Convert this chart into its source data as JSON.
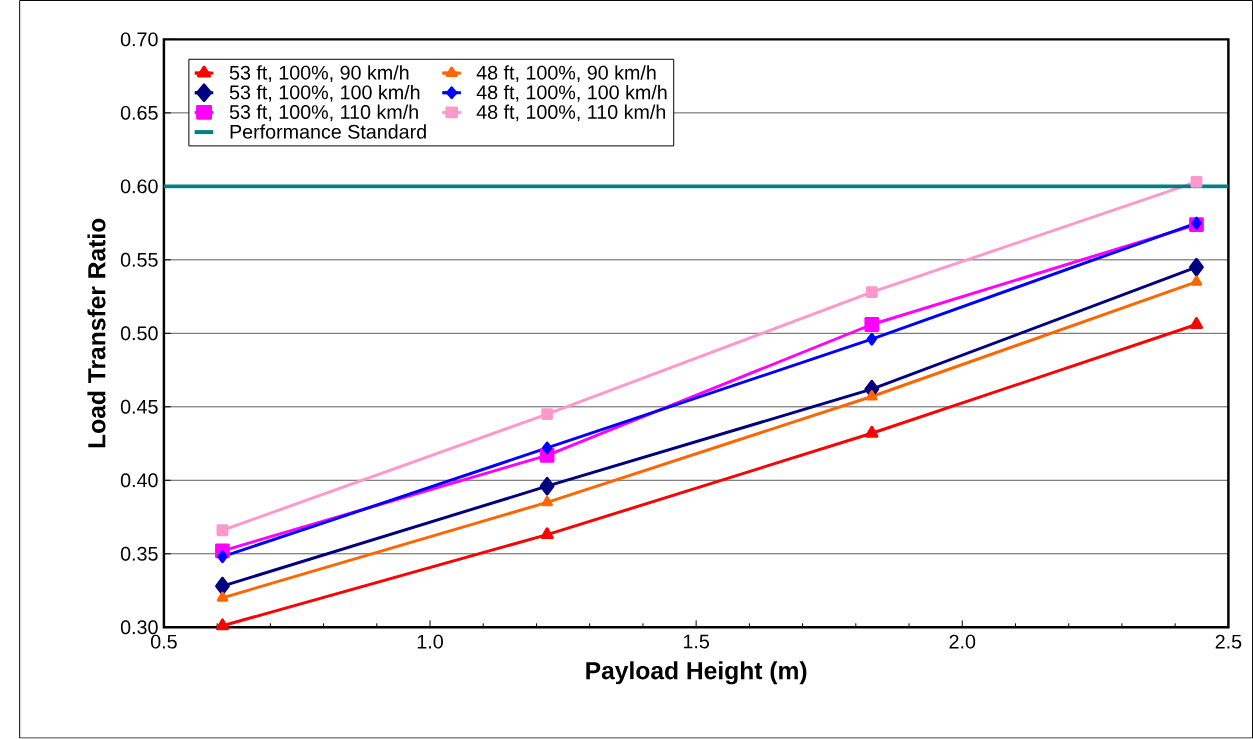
{
  "chart_data": {
    "type": "line",
    "xlabel": "Payload Height (m)",
    "ylabel": "Load Transfer Ratio",
    "x": [
      0.61,
      1.22,
      1.83,
      2.44
    ],
    "series": [
      {
        "name": "53 ft, 100%, 90 km/h",
        "color": "#ff0000",
        "marker": "triangle",
        "values": [
          0.301,
          0.363,
          0.432,
          0.506
        ]
      },
      {
        "name": "48 ft, 100%, 90 km/h",
        "color": "#ff6600",
        "marker": "triangle",
        "values": [
          0.32,
          0.385,
          0.457,
          0.535
        ]
      },
      {
        "name": "53 ft, 100%, 100 km/h",
        "color": "#000080",
        "marker": "diamond",
        "values": [
          0.328,
          0.396,
          0.462,
          0.545
        ]
      },
      {
        "name": "48 ft, 100%, 100 km/h",
        "color": "#0000ff",
        "marker": "diamond",
        "values": [
          0.348,
          0.422,
          0.496,
          0.575
        ]
      },
      {
        "name": "53 ft, 100%, 110 km/h",
        "color": "#ff00ff",
        "marker": "square",
        "values": [
          0.352,
          0.417,
          0.506,
          0.574
        ]
      },
      {
        "name": "48 ft, 100%, 110 km/h",
        "color": "#ff99cc",
        "marker": "square",
        "values": [
          0.366,
          0.445,
          0.528,
          0.603
        ]
      }
    ],
    "ref_lines": [
      {
        "axis": "y",
        "value": 0.6,
        "label": "Performance Standard",
        "color": "#008080"
      }
    ],
    "xlim": [
      0.5,
      2.5
    ],
    "xticks": [
      {
        "value": 0.5,
        "label": "0.5"
      },
      {
        "value": 1.0,
        "label": "1.0"
      },
      {
        "value": 1.5,
        "label": "1.5"
      },
      {
        "value": 2.0,
        "label": "2.0"
      },
      {
        "value": 2.5,
        "label": "2.5"
      }
    ],
    "ylim": [
      0.3,
      0.7
    ],
    "yticks": [
      {
        "value": 0.3,
        "label": "0.30"
      },
      {
        "value": 0.35,
        "label": "0.35"
      },
      {
        "value": 0.4,
        "label": "0.40"
      },
      {
        "value": 0.45,
        "label": "0.45"
      },
      {
        "value": 0.5,
        "label": "0.50"
      },
      {
        "value": 0.55,
        "label": "0.55"
      },
      {
        "value": 0.6,
        "label": "0.60"
      },
      {
        "value": 0.65,
        "label": "0.65"
      },
      {
        "value": 0.7,
        "label": "0.70"
      }
    ],
    "grid": "y",
    "legend": "top left",
    "line_style": "solid"
  }
}
